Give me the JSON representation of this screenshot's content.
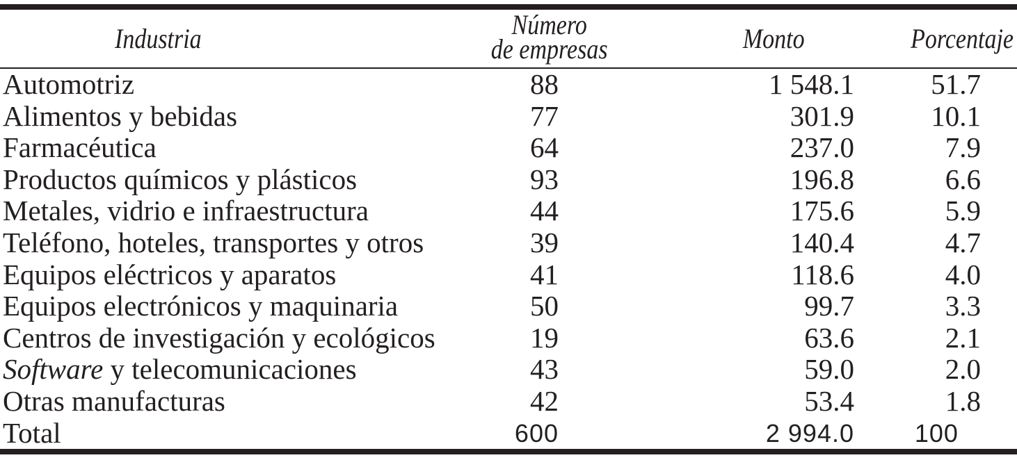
{
  "colors": {
    "text": "#231f20",
    "rule": "#231f20",
    "background": "#ffffff"
  },
  "table": {
    "headers": {
      "industry": "Industria",
      "companies_line1": "Número",
      "companies_line2": "de empresas",
      "amount": "Monto",
      "percentage": "Porcentaje"
    },
    "rows": [
      {
        "industry": "Automotriz",
        "companies": "88",
        "amount": "1 548.1",
        "percentage": "51.7"
      },
      {
        "industry": "Alimentos y bebidas",
        "companies": "77",
        "amount": "301.9",
        "percentage": "10.1"
      },
      {
        "industry": "Farmacéutica",
        "companies": "64",
        "amount": "237.0",
        "percentage": "7.9"
      },
      {
        "industry": "Productos químicos y plásticos",
        "companies": "93",
        "amount": "196.8",
        "percentage": "6.6"
      },
      {
        "industry": "Metales, vidrio e infraestructura",
        "companies": "44",
        "amount": "175.6",
        "percentage": "5.9"
      },
      {
        "industry": "Teléfono, hoteles, transportes y otros",
        "companies": "39",
        "amount": "140.4",
        "percentage": "4.7"
      },
      {
        "industry": "Equipos eléctricos y aparatos",
        "companies": "41",
        "amount": "118.6",
        "percentage": "4.0"
      },
      {
        "industry": "Equipos electrónicos y maquinaria",
        "companies": "50",
        "amount": "99.7",
        "percentage": "3.3"
      },
      {
        "industry": "Centros de investigación y ecológicos",
        "companies": "19",
        "amount": "63.6",
        "percentage": "2.1"
      },
      {
        "industry_italic_prefix": "Software",
        "industry": " y telecomunicaciones",
        "companies": "43",
        "amount": "59.0",
        "percentage": "2.0"
      },
      {
        "industry": "Otras manufacturas",
        "companies": "42",
        "amount": "53.4",
        "percentage": "1.8"
      },
      {
        "industry": "Total",
        "companies": "600",
        "amount": "2 994.0",
        "percentage": "100",
        "is_total": true
      }
    ]
  }
}
